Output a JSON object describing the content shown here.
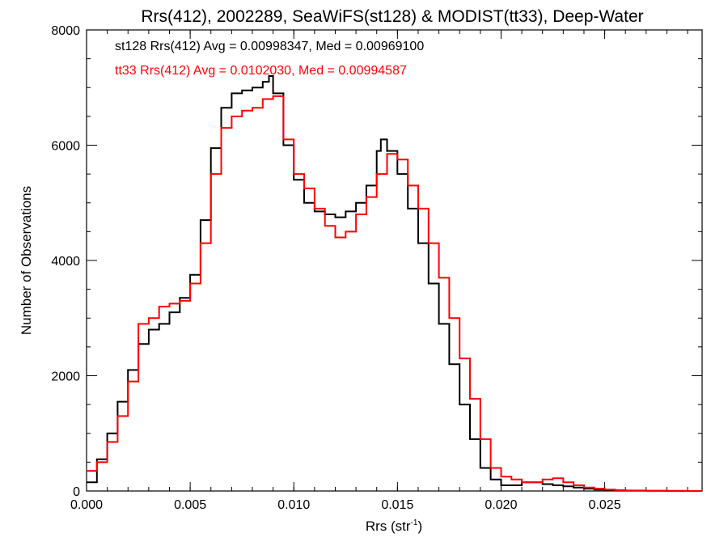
{
  "chart_data": {
    "type": "line",
    "title": "Rrs(412), 2002289, SeaWiFS(st128) & MODIST(tt33), Deep-Water",
    "xlabel": "Rrs (str",
    "xlabel_sup": "-1",
    "xlabel_suffix": ")",
    "ylabel": "Number of Observations",
    "xlim": [
      0.0,
      0.0297
    ],
    "ylim": [
      0,
      8000
    ],
    "xticks": [
      {
        "value": 0.0,
        "label": "0.000"
      },
      {
        "value": 0.005,
        "label": "0.005"
      },
      {
        "value": 0.01,
        "label": "0.010"
      },
      {
        "value": 0.015,
        "label": "0.015"
      },
      {
        "value": 0.02,
        "label": "0.020"
      },
      {
        "value": 0.025,
        "label": "0.025"
      }
    ],
    "yticks": [
      {
        "value": 0,
        "label": "0"
      },
      {
        "value": 2000,
        "label": "2000"
      },
      {
        "value": 4000,
        "label": "4000"
      },
      {
        "value": 6000,
        "label": "6000"
      },
      {
        "value": 8000,
        "label": "8000"
      }
    ],
    "annotations": [
      {
        "text": "st128 Rrs(412) Avg = 0.00998347, Med = 0.00969100",
        "color": "#000000"
      },
      {
        "text": "tt33 Rrs(412) Avg = 0.0102030, Med = 0.00994587",
        "color": "#ff0000"
      }
    ],
    "step": "histogram",
    "series": [
      {
        "color": "#000000",
        "x": [
          0.0,
          0.0005,
          0.001,
          0.0015,
          0.002,
          0.0025,
          0.003,
          0.0035,
          0.004,
          0.0045,
          0.005,
          0.0055,
          0.006,
          0.0065,
          0.007,
          0.0075,
          0.008,
          0.0085,
          0.0088,
          0.009,
          0.0095,
          0.01,
          0.0105,
          0.011,
          0.0115,
          0.012,
          0.0125,
          0.013,
          0.0135,
          0.014,
          0.0142,
          0.0145,
          0.015,
          0.0155,
          0.016,
          0.0165,
          0.017,
          0.0175,
          0.018,
          0.0185,
          0.019,
          0.0195,
          0.02,
          0.0205,
          0.021,
          0.0215,
          0.022,
          0.0225,
          0.023,
          0.0235,
          0.024,
          0.0245,
          0.025,
          0.0255,
          0.026,
          0.027,
          0.028,
          0.029
        ],
        "y": [
          150,
          550,
          1000,
          1550,
          2100,
          2550,
          2800,
          2900,
          3100,
          3350,
          3750,
          4700,
          5950,
          6650,
          6900,
          6950,
          7000,
          7100,
          7200,
          6900,
          6000,
          5400,
          5000,
          4850,
          4800,
          4750,
          4850,
          5000,
          5300,
          5900,
          6100,
          5900,
          5500,
          4900,
          4300,
          3600,
          2900,
          2200,
          1500,
          900,
          400,
          200,
          100,
          100,
          150,
          150,
          120,
          100,
          80,
          60,
          40,
          25,
          15,
          10,
          5,
          3,
          1,
          0
        ]
      },
      {
        "color": "#ff0000",
        "x": [
          0.0,
          0.0005,
          0.001,
          0.0015,
          0.002,
          0.0025,
          0.003,
          0.0035,
          0.004,
          0.0045,
          0.005,
          0.0055,
          0.006,
          0.0065,
          0.007,
          0.0075,
          0.008,
          0.0085,
          0.009,
          0.0095,
          0.01,
          0.0105,
          0.011,
          0.0115,
          0.012,
          0.0125,
          0.013,
          0.0135,
          0.014,
          0.0145,
          0.015,
          0.0155,
          0.016,
          0.0165,
          0.017,
          0.0175,
          0.018,
          0.0185,
          0.019,
          0.0195,
          0.02,
          0.0205,
          0.021,
          0.0215,
          0.022,
          0.0225,
          0.023,
          0.0235,
          0.024,
          0.0245,
          0.025,
          0.0255,
          0.026,
          0.027,
          0.028,
          0.029
        ],
        "y": [
          350,
          500,
          850,
          1300,
          1900,
          2900,
          3000,
          3200,
          3250,
          3300,
          3600,
          4300,
          5500,
          6300,
          6500,
          6600,
          6650,
          6800,
          6850,
          6100,
          5500,
          5250,
          4900,
          4600,
          4400,
          4500,
          4800,
          5100,
          5500,
          5850,
          5750,
          5300,
          4900,
          4300,
          3700,
          3000,
          2300,
          1600,
          900,
          400,
          250,
          200,
          150,
          150,
          200,
          220,
          150,
          100,
          60,
          40,
          25,
          15,
          8,
          4,
          2,
          0
        ]
      }
    ]
  }
}
